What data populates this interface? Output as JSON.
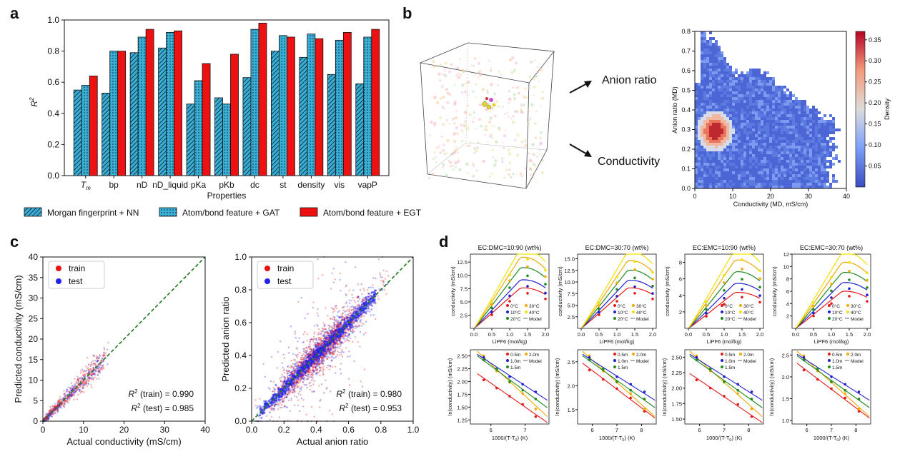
{
  "panels": {
    "a": {
      "letter": "a"
    },
    "b": {
      "letter": "b",
      "arrow_labels": [
        "Anion ratio",
        "Conductivity"
      ]
    },
    "c": {
      "letter": "c"
    },
    "d": {
      "letter": "d"
    }
  },
  "colors": {
    "morgan": "#3aafd6",
    "gat": "#3aafd6",
    "egt": "#ee1111",
    "train": "#ee1111",
    "test": "#2222ee",
    "diag": "#1a7a1a"
  },
  "chart_data": [
    {
      "id": "a",
      "type": "bar",
      "title": "",
      "xlabel": "Properties",
      "ylabel": "R",
      "ylabel_sup": "2",
      "ylim": [
        0.0,
        1.0
      ],
      "yticks": [
        "0.0",
        "0.2",
        "0.4",
        "0.6",
        "0.8",
        "1.0"
      ],
      "categories": [
        "T",
        "bp",
        "nD",
        "nD_liquid",
        "pKa",
        "pKb",
        "dc",
        "st",
        "density",
        "vis",
        "vapP"
      ],
      "category_sub": "m",
      "series": [
        {
          "name": "Morgan fingerprint + NN",
          "pattern": "hatch-diagonal",
          "values": [
            0.55,
            0.53,
            0.79,
            0.82,
            0.46,
            0.5,
            0.63,
            0.8,
            0.76,
            0.65,
            0.59
          ]
        },
        {
          "name": "Atom/bond feature + GAT",
          "pattern": "dots",
          "values": [
            0.58,
            0.8,
            0.89,
            0.92,
            0.61,
            0.46,
            0.94,
            0.9,
            0.91,
            0.87,
            0.89
          ]
        },
        {
          "name": "Atom/bond feature + EGT",
          "pattern": "solid",
          "values": [
            0.64,
            0.8,
            0.94,
            0.93,
            0.72,
            0.78,
            0.98,
            0.89,
            0.88,
            0.92,
            0.94
          ]
        }
      ]
    },
    {
      "id": "b",
      "type": "heatmap",
      "xlabel": "Conductivity (MD, mS/cm)",
      "ylabel": "Anion ratio (MD)",
      "xlim": [
        0,
        40
      ],
      "ylim": [
        0.0,
        0.8
      ],
      "xticks": [
        "0",
        "10",
        "20",
        "30",
        "40"
      ],
      "yticks": [
        "0.0",
        "0.1",
        "0.2",
        "0.3",
        "0.4",
        "0.5",
        "0.6",
        "0.7",
        "0.8"
      ],
      "colorbar_label": "Density",
      "colorbar_ticks": [
        "0.05",
        "0.10",
        "0.15",
        "0.20",
        "0.25",
        "0.30",
        "0.35"
      ],
      "colorbar_range": [
        0.0,
        0.37
      ],
      "peak": {
        "x": 5,
        "y": 0.3
      }
    },
    {
      "id": "c1",
      "type": "scatter",
      "xlabel": "Actual conductivity (mS/cm)",
      "ylabel": "Predicted conductivity (mS/cm)",
      "xlim": [
        0,
        40
      ],
      "ylim": [
        0,
        40
      ],
      "ticks": [
        "0",
        "5",
        "10",
        "15",
        "20",
        "25",
        "30",
        "35",
        "40"
      ],
      "xticks": [
        "0",
        "10",
        "20",
        "30",
        "40"
      ],
      "legend": [
        "train",
        "test"
      ],
      "r2_train": "= 0.990",
      "r2_test": "= 0.985",
      "r2_train_label": "(train)",
      "r2_test_label": "(test)"
    },
    {
      "id": "c2",
      "type": "scatter",
      "xlabel": "Actual anion ratio",
      "ylabel": "Predicted anion ratio",
      "xlim": [
        0,
        1
      ],
      "ylim": [
        0,
        1
      ],
      "ticks": [
        "0.0",
        "0.2",
        "0.4",
        "0.6",
        "0.8",
        "1.0"
      ],
      "legend": [
        "train",
        "test"
      ],
      "r2_train": "= 0.980",
      "r2_test": "= 0.953",
      "r2_train_label": "(train)",
      "r2_test_label": "(test)"
    },
    {
      "id": "d-top",
      "type": "line",
      "titles": [
        "EC:DMC=10:90 (wt%)",
        "EC:DMC=30:70 (wt%)",
        "EC:EMC=10:90 (wt%)",
        "EC:EMC=30:70 (wt%)"
      ],
      "xlabel": "LiPF6 (mol/kg)",
      "ylabel": "conductivity (mS/cm)",
      "xticks": [
        "0.0",
        "0.5",
        "1.0",
        "1.5",
        "2.0"
      ],
      "yticks": [
        [
          "2.5",
          "5.0",
          "7.5",
          "10.0",
          "12.5"
        ],
        [
          "2.5",
          "5.0",
          "7.5",
          "10.0",
          "12.5",
          "15.0"
        ],
        [
          "2",
          "4",
          "6",
          "8"
        ],
        [
          "2",
          "4",
          "6",
          "8",
          "10",
          "12"
        ]
      ],
      "ymax": [
        14,
        16,
        9,
        12
      ],
      "peaks": [
        [
          7.0,
          8.4,
          10.5,
          12.3,
          13.8
        ],
        [
          8.0,
          9.5,
          11.5,
          13.4,
          15.2
        ],
        [
          4.0,
          5.0,
          6.3,
          7.6,
          8.8
        ],
        [
          5.5,
          6.8,
          8.3,
          9.8,
          11.3
        ]
      ],
      "legend": [
        "0°C",
        "30°C",
        "10°C",
        "40°C",
        "20°C",
        "Model"
      ],
      "series_colors": [
        "#e31a1c",
        "#1f1fcf",
        "#1f8a1f",
        "#f2a900",
        "#f0e000"
      ]
    },
    {
      "id": "d-bottom",
      "type": "line",
      "xlabel": "1000/(T-T",
      "xlabel_sub": "0",
      "xlabel_tail": ") (K)",
      "ylabel": "ln(conductivity) (mS/cm)",
      "xticks": [
        [
          "6",
          "7"
        ],
        [
          "6",
          "7",
          "8"
        ],
        [
          "6",
          "7",
          "8"
        ],
        [
          "6",
          "7",
          "8"
        ]
      ],
      "yticks": [
        [
          "1.25",
          "1.50",
          "1.75",
          "2.00",
          "2.25",
          "2.50"
        ],
        [
          "1.5",
          "2.0",
          "2.5"
        ],
        [
          "1.50",
          "1.75",
          "2.00",
          "2.25",
          "2.50"
        ],
        [
          "1.0",
          "1.5",
          "2.0",
          "2.5"
        ]
      ],
      "legend": [
        "0.5m",
        "2.0m",
        "1.0m",
        "Model",
        "1.5m"
      ],
      "series_colors": [
        "#e31a1c",
        "#f2a900",
        "#1f1fcf",
        "#1f8a1f"
      ]
    }
  ]
}
